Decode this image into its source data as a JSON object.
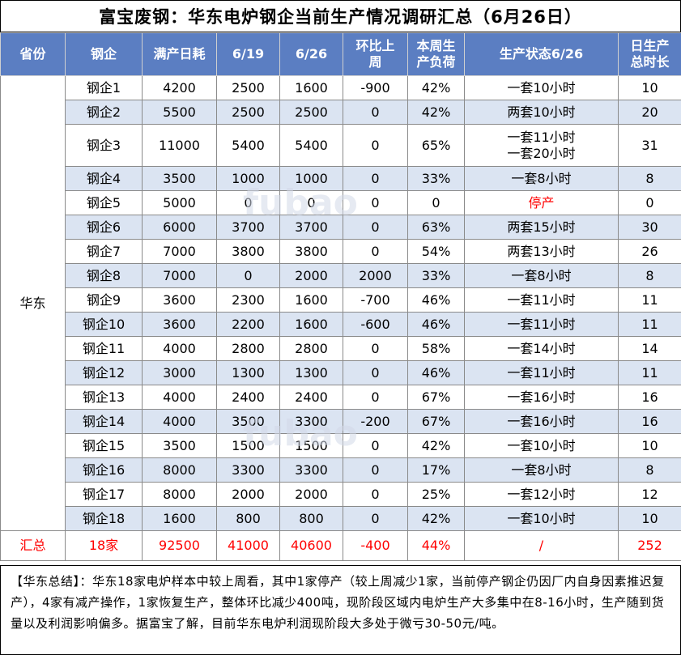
{
  "title": "富宝废钢：华东电炉钢企当前生产情况调研汇总（6月26日）",
  "headers": {
    "province": "省份",
    "company": "钢企",
    "full_capacity": "满产日耗",
    "d0619": "6/19",
    "d0626": "6/26",
    "wow_line1": "环比上",
    "wow_line2": "周",
    "load_line1": "本周生",
    "load_line2": "产负荷",
    "status": "生产状态6/26",
    "hours_line1": "日生产",
    "hours_line2": "总时长"
  },
  "province": "华东",
  "rows": [
    {
      "company": "钢企1",
      "full": "4200",
      "d0619": "2500",
      "d0626": "1600",
      "wow": "-900",
      "load": "42%",
      "status1": "一套10小时",
      "status2": "",
      "hours": "10"
    },
    {
      "company": "钢企2",
      "full": "5500",
      "d0619": "2500",
      "d0626": "2500",
      "wow": "0",
      "load": "42%",
      "status1": "两套10小时",
      "status2": "",
      "hours": "20"
    },
    {
      "company": "钢企3",
      "full": "11000",
      "d0619": "5400",
      "d0626": "5400",
      "wow": "0",
      "load": "65%",
      "status1": "一套11小时",
      "status2": "一套20小时",
      "hours": "31"
    },
    {
      "company": "钢企4",
      "full": "3500",
      "d0619": "1000",
      "d0626": "1000",
      "wow": "0",
      "load": "33%",
      "status1": "一套8小时",
      "status2": "",
      "hours": "8"
    },
    {
      "company": "钢企5",
      "full": "5000",
      "d0619": "0",
      "d0626": "0",
      "wow": "0",
      "load": "0",
      "status1": "停产",
      "status2": "",
      "hours": "0"
    },
    {
      "company": "钢企6",
      "full": "6000",
      "d0619": "3700",
      "d0626": "3700",
      "wow": "0",
      "load": "63%",
      "status1": "两套15小时",
      "status2": "",
      "hours": "30"
    },
    {
      "company": "钢企7",
      "full": "7000",
      "d0619": "3800",
      "d0626": "3800",
      "wow": "0",
      "load": "54%",
      "status1": "两套13小时",
      "status2": "",
      "hours": "26"
    },
    {
      "company": "钢企8",
      "full": "7000",
      "d0619": "0",
      "d0626": "2000",
      "wow": "2000",
      "load": "33%",
      "status1": "一套8小时",
      "status2": "",
      "hours": "8"
    },
    {
      "company": "钢企9",
      "full": "3600",
      "d0619": "2300",
      "d0626": "1600",
      "wow": "-700",
      "load": "46%",
      "status1": "一套11小时",
      "status2": "",
      "hours": "11"
    },
    {
      "company": "钢企10",
      "full": "3600",
      "d0619": "2200",
      "d0626": "1600",
      "wow": "-600",
      "load": "46%",
      "status1": "一套11小时",
      "status2": "",
      "hours": "11"
    },
    {
      "company": "钢企11",
      "full": "4000",
      "d0619": "2800",
      "d0626": "2800",
      "wow": "0",
      "load": "58%",
      "status1": "一套14小时",
      "status2": "",
      "hours": "14"
    },
    {
      "company": "钢企12",
      "full": "3000",
      "d0619": "1300",
      "d0626": "1300",
      "wow": "0",
      "load": "46%",
      "status1": "一套11小时",
      "status2": "",
      "hours": "11"
    },
    {
      "company": "钢企13",
      "full": "4000",
      "d0619": "2400",
      "d0626": "2400",
      "wow": "0",
      "load": "67%",
      "status1": "一套16小时",
      "status2": "",
      "hours": "16"
    },
    {
      "company": "钢企14",
      "full": "4000",
      "d0619": "3500",
      "d0626": "3300",
      "wow": "-200",
      "load": "67%",
      "status1": "一套16小时",
      "status2": "",
      "hours": "16"
    },
    {
      "company": "钢企15",
      "full": "3500",
      "d0619": "1500",
      "d0626": "1500",
      "wow": "0",
      "load": "42%",
      "status1": "一套10小时",
      "status2": "",
      "hours": "10"
    },
    {
      "company": "钢企16",
      "full": "8000",
      "d0619": "3300",
      "d0626": "3300",
      "wow": "0",
      "load": "17%",
      "status1": "一套8小时",
      "status2": "",
      "hours": "8"
    },
    {
      "company": "钢企17",
      "full": "8000",
      "d0619": "2000",
      "d0626": "2000",
      "wow": "0",
      "load": "25%",
      "status1": "一套12小时",
      "status2": "",
      "hours": "12"
    },
    {
      "company": "钢企18",
      "full": "1600",
      "d0619": "800",
      "d0626": "800",
      "wow": "0",
      "load": "42%",
      "status1": "一套10小时",
      "status2": "",
      "hours": "10"
    }
  ],
  "total": {
    "label": "汇总",
    "company": "18家",
    "full": "92500",
    "d0619": "41000",
    "d0626": "40600",
    "wow": "-400",
    "load": "44%",
    "status": "/",
    "hours": "252"
  },
  "summary": "【华东总结】：华东18家电炉样本中较上周看，其中1家停产（较上周减少1家，当前停产钢企仍因厂内自身因素推迟复产），4家有减产操作，1家恢复生产，整体环比减少400吨，现阶段区域内电炉生产大多集中在8-16小时，生产随到货量以及利润影响偏多。据富宝了解，目前华东电炉利润现阶段大多处于微亏30-50元/吨。",
  "watermark": {
    "brand_en": "fubao",
    "brand_cn": "富宝资讯"
  },
  "colors": {
    "header_bg": "#5b7ec2",
    "alt_row_bg": "#dbe4f2",
    "alert": "#ff0000"
  }
}
